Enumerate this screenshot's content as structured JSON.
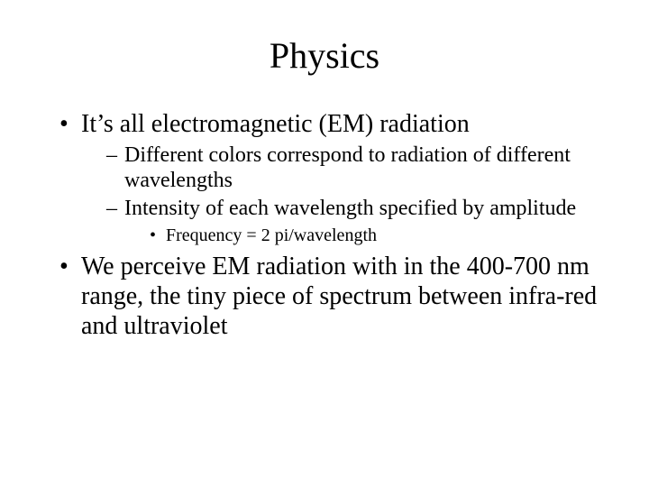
{
  "colors": {
    "background": "#ffffff",
    "text": "#000000"
  },
  "typography": {
    "font_family": "Times New Roman",
    "title_fontsize_pt": 40,
    "level1_fontsize_pt": 28,
    "level2_fontsize_pt": 24,
    "level3_fontsize_pt": 20
  },
  "title": "Physics",
  "bullets": [
    {
      "text": "It’s all electromagnetic (EM) radiation",
      "sub": [
        {
          "text": "Different colors correspond to radiation of different wavelengths"
        },
        {
          "text": "Intensity of each wavelength specified by amplitude",
          "sub": [
            {
              "text": "Frequency = 2 pi/wavelength"
            }
          ]
        }
      ]
    },
    {
      "text": "We perceive EM radiation with in the 400-700 nm range, the tiny piece of spectrum between infra-red and ultraviolet"
    }
  ]
}
